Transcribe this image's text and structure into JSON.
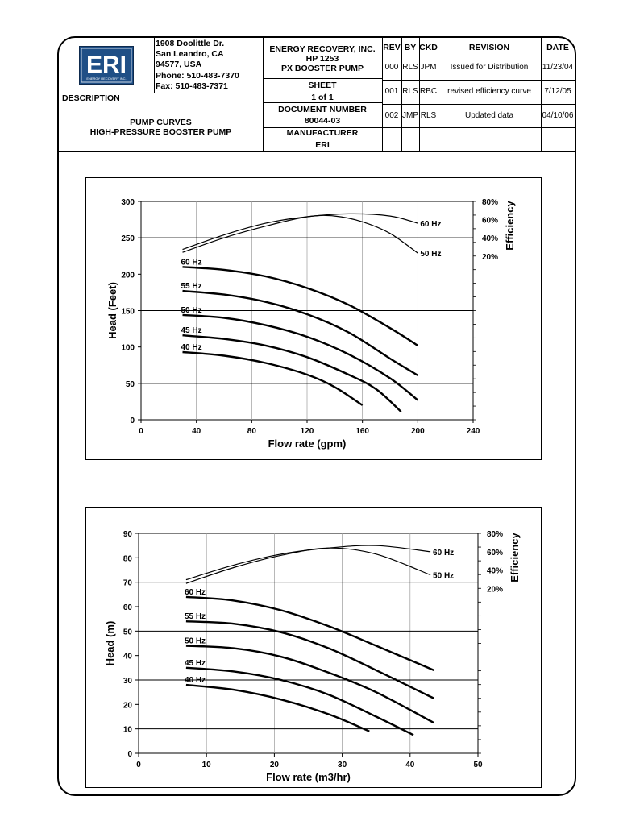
{
  "header": {
    "logo_text": "ERI",
    "logo_sub": "ENERGY RECOVERY INC.",
    "address": [
      "1908 Doolittle Dr.",
      "San Leandro, CA",
      "94577, USA",
      "Phone: 510-483-7370",
      "Fax: 510-483-7371"
    ],
    "description_label": "DESCRIPTION",
    "description": [
      "PUMP CURVES",
      "HIGH-PRESSURE BOOSTER PUMP"
    ],
    "company": "ENERGY RECOVERY, INC.",
    "model": "HP 1253",
    "product": "PX BOOSTER PUMP",
    "sheet_label": "SHEET",
    "sheet_value": "1  of  1",
    "docnum_label": "DOCUMENT NUMBER",
    "docnum_value": "80044-03",
    "manufacturer_label": "MANUFACTURER",
    "manufacturer_value": "ERI",
    "rev_headers": {
      "rev": "REV",
      "by": "BY",
      "ckd": "CKD",
      "revision": "REVISION",
      "date": "DATE"
    },
    "revisions": [
      {
        "rev": "000",
        "by": "RLS",
        "ckd": "JPM",
        "revision": "Issued for Distribution",
        "date": "11/23/04"
      },
      {
        "rev": "001",
        "by": "RLS",
        "ckd": "RBC",
        "revision": "revised efficiency curve",
        "date": "7/12/05"
      },
      {
        "rev": "002",
        "by": "JMP",
        "ckd": "RLS",
        "revision": "Updated data",
        "date": "04/10/06"
      }
    ]
  },
  "chart_data": [
    {
      "type": "line",
      "xlabel": "Flow rate (gpm)",
      "ylabel": "Head (Feet)",
      "y2label": "Efficiency",
      "xlim": [
        0,
        240
      ],
      "ylim": [
        0,
        300
      ],
      "xticks": [
        0,
        40,
        80,
        120,
        160,
        200,
        240
      ],
      "yticks": [
        0,
        50,
        100,
        150,
        200,
        250,
        300
      ],
      "y2ticks": [
        "20%",
        "40%",
        "60%",
        "80%"
      ],
      "y2tick_heads": [
        225,
        250,
        275,
        300
      ],
      "grid": true,
      "head_series": [
        {
          "name": "60 Hz",
          "x": [
            30,
            60,
            90,
            120,
            150,
            180,
            200
          ],
          "y": [
            210,
            206,
            197,
            181,
            158,
            126,
            102
          ]
        },
        {
          "name": "55 Hz",
          "x": [
            30,
            60,
            90,
            120,
            150,
            180,
            200
          ],
          "y": [
            177,
            172,
            162,
            145,
            120,
            84,
            61
          ]
        },
        {
          "name": "50 Hz",
          "x": [
            30,
            60,
            90,
            120,
            150,
            180,
            200
          ],
          "y": [
            144,
            140,
            130,
            114,
            90,
            57,
            27
          ]
        },
        {
          "name": "45 Hz",
          "x": [
            30,
            60,
            90,
            120,
            150,
            170,
            188
          ],
          "y": [
            116,
            111,
            102,
            86,
            62,
            42,
            11
          ]
        },
        {
          "name": "40 Hz",
          "x": [
            30,
            60,
            90,
            120,
            140,
            160
          ],
          "y": [
            93,
            88,
            78,
            62,
            45,
            20
          ]
        }
      ],
      "efficiency_series": [
        {
          "name": "60 Hz",
          "x": [
            30,
            60,
            90,
            120,
            150,
            180,
            200
          ],
          "y": [
            234,
            254,
            270,
            279,
            283,
            280,
            270
          ]
        },
        {
          "name": "50 Hz",
          "x": [
            30,
            60,
            90,
            120,
            140,
            160,
            180,
            200
          ],
          "y": [
            230,
            250,
            266,
            279,
            280,
            272,
            256,
            229
          ]
        }
      ]
    },
    {
      "type": "line",
      "xlabel": "Flow rate (m3/hr)",
      "ylabel": "Head (m)",
      "y2label": "Efficiency",
      "xlim": [
        0,
        50
      ],
      "ylim": [
        0,
        90
      ],
      "xticks": [
        0,
        10,
        20,
        30,
        40,
        50
      ],
      "yticks": [
        0,
        10,
        20,
        30,
        40,
        50,
        60,
        70,
        80,
        90
      ],
      "y2ticks": [
        "20%",
        "40%",
        "60%",
        "80%"
      ],
      "y2tick_heads": [
        67.5,
        75,
        82.5,
        90
      ],
      "grid": true,
      "head_series": [
        {
          "name": "60 Hz",
          "x": [
            7,
            14,
            21,
            28,
            35,
            43.5
          ],
          "y": [
            64,
            62.5,
            58.5,
            52,
            44,
            34
          ]
        },
        {
          "name": "55 Hz",
          "x": [
            7,
            14,
            21,
            28,
            35,
            43.5
          ],
          "y": [
            54,
            53,
            49.5,
            43,
            34,
            22.5
          ]
        },
        {
          "name": "50 Hz",
          "x": [
            7,
            14,
            21,
            28,
            35,
            43.5
          ],
          "y": [
            44,
            43,
            39.5,
            33,
            25,
            12.5
          ]
        },
        {
          "name": "45 Hz",
          "x": [
            7,
            14,
            21,
            28,
            35,
            40.5
          ],
          "y": [
            35,
            33.5,
            30,
            24,
            15,
            7.5
          ]
        },
        {
          "name": "40 Hz",
          "x": [
            7,
            14,
            21,
            28,
            34
          ],
          "y": [
            28,
            26,
            22,
            16,
            9
          ]
        }
      ],
      "efficiency_series": [
        {
          "name": "60 Hz",
          "x": [
            7,
            14,
            21,
            28,
            35,
            43
          ],
          "y": [
            71,
            77,
            81.5,
            84,
            85,
            82.5
          ]
        },
        {
          "name": "50 Hz",
          "x": [
            7,
            14,
            21,
            28,
            35,
            43
          ],
          "y": [
            69.5,
            76,
            81,
            84,
            81.5,
            73
          ]
        }
      ]
    }
  ]
}
